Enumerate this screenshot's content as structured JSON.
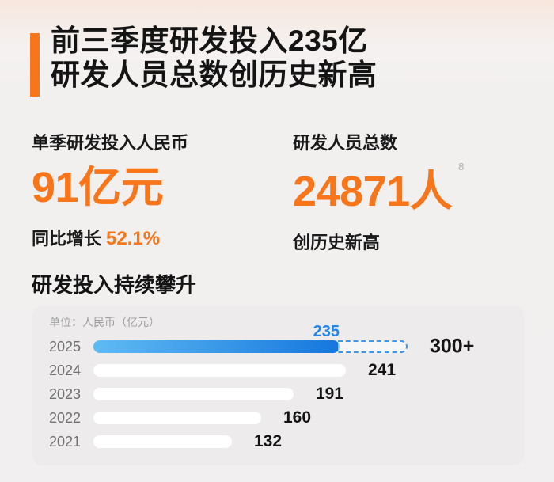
{
  "colors": {
    "accent_orange": "#F8751A",
    "text_black": "#141414",
    "blue_bar_start": "#5FBBF3",
    "blue_bar_end": "#1577DE",
    "blue_value_label": "#2286EB",
    "dashed_border": "#3E96E9",
    "year_gray": "#707070",
    "unit_gray": "#9E9E9E",
    "bar_white": "#FFFFFF",
    "card_bg": "#EDEBEB",
    "page_bg_top_peach": "#F7E7DD",
    "page_bg_gray": "#F1EFEF"
  },
  "header": {
    "title_line1": "前三季度研发投入235亿",
    "title_line2": "研发人员总数创历史新高"
  },
  "stats": {
    "left": {
      "label": "单季研发投入人民币",
      "value": "91亿元",
      "sub_label": "同比增长",
      "sub_value": "52.1%"
    },
    "right": {
      "label": "研发人员总数",
      "value": "24871人",
      "footnote": "8",
      "sub_label": "创历史新高"
    }
  },
  "chart_section": {
    "title": "研发投入持续攀升",
    "unit_label": "单位：人民币（亿元）"
  },
  "chart_data": {
    "type": "bar",
    "orientation": "horizontal",
    "title": "研发投入持续攀升",
    "unit": "人民币（亿元）",
    "categories": [
      "2025",
      "2024",
      "2023",
      "2022",
      "2021"
    ],
    "values": [
      235,
      241,
      191,
      160,
      132
    ],
    "value_labels": [
      "235",
      "241",
      "191",
      "160",
      "132"
    ],
    "xlim": [
      0,
      300
    ],
    "grid": false,
    "legend": "none",
    "bar_color_default": "#FFFFFF",
    "highlight": {
      "index": 0,
      "bar_style": "blue-gradient",
      "value_label": "235",
      "value_label_color": "#2286EB",
      "projection_value": 300,
      "projection_label": "300+",
      "projection_style": "dashed-outline"
    }
  }
}
